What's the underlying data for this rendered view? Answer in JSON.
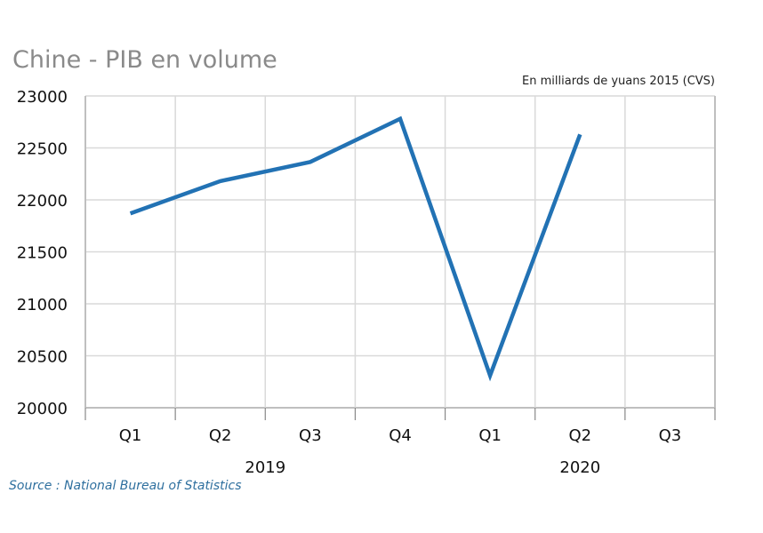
{
  "chart_data": {
    "type": "line",
    "title": "Chine - PIB en volume",
    "subtitle": "En milliards de yuans 2015 (CVS)",
    "source": "Source : National Bureau of Statistics",
    "categories": [
      "Q1",
      "Q2",
      "Q3",
      "Q4",
      "Q1",
      "Q2",
      "Q3"
    ],
    "year_groups": [
      {
        "label": "2019",
        "start": 0,
        "end": 3
      },
      {
        "label": "2020",
        "start": 4,
        "end": 6
      }
    ],
    "series": [
      {
        "values": [
          21870,
          22180,
          22365,
          22780,
          20310,
          22630,
          null
        ],
        "color": "#2272b4"
      }
    ],
    "ylim": [
      20000,
      23000
    ],
    "yticks": [
      "20000",
      "20500",
      "21000",
      "21500",
      "22000",
      "22500",
      "23000"
    ],
    "grid": true,
    "gridline_color": "#d9d9d9",
    "axis_color": "#bfbfbf"
  }
}
